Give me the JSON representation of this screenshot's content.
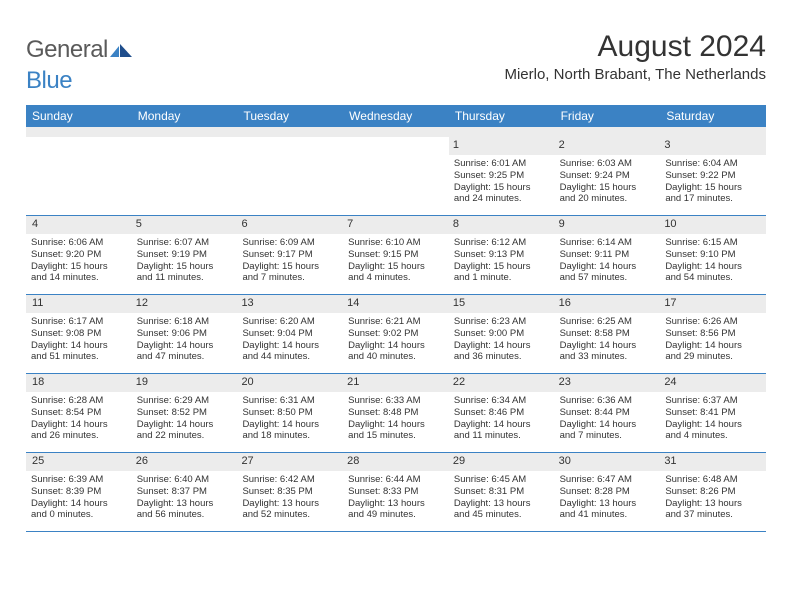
{
  "brand": {
    "part1": "General",
    "part2": "Blue"
  },
  "title": "August 2024",
  "location": "Mierlo, North Brabant, The Netherlands",
  "colors": {
    "accent": "#3b82c4",
    "band": "#ececec",
    "text": "#333333",
    "logo_gray": "#5a5a5a"
  },
  "dow": [
    "Sunday",
    "Monday",
    "Tuesday",
    "Wednesday",
    "Thursday",
    "Friday",
    "Saturday"
  ],
  "weeks": [
    [
      {
        "n": "",
        "sr": "",
        "ss": "",
        "d1": "",
        "d2": ""
      },
      {
        "n": "",
        "sr": "",
        "ss": "",
        "d1": "",
        "d2": ""
      },
      {
        "n": "",
        "sr": "",
        "ss": "",
        "d1": "",
        "d2": ""
      },
      {
        "n": "",
        "sr": "",
        "ss": "",
        "d1": "",
        "d2": ""
      },
      {
        "n": "1",
        "sr": "Sunrise: 6:01 AM",
        "ss": "Sunset: 9:25 PM",
        "d1": "Daylight: 15 hours",
        "d2": "and 24 minutes."
      },
      {
        "n": "2",
        "sr": "Sunrise: 6:03 AM",
        "ss": "Sunset: 9:24 PM",
        "d1": "Daylight: 15 hours",
        "d2": "and 20 minutes."
      },
      {
        "n": "3",
        "sr": "Sunrise: 6:04 AM",
        "ss": "Sunset: 9:22 PM",
        "d1": "Daylight: 15 hours",
        "d2": "and 17 minutes."
      }
    ],
    [
      {
        "n": "4",
        "sr": "Sunrise: 6:06 AM",
        "ss": "Sunset: 9:20 PM",
        "d1": "Daylight: 15 hours",
        "d2": "and 14 minutes."
      },
      {
        "n": "5",
        "sr": "Sunrise: 6:07 AM",
        "ss": "Sunset: 9:19 PM",
        "d1": "Daylight: 15 hours",
        "d2": "and 11 minutes."
      },
      {
        "n": "6",
        "sr": "Sunrise: 6:09 AM",
        "ss": "Sunset: 9:17 PM",
        "d1": "Daylight: 15 hours",
        "d2": "and 7 minutes."
      },
      {
        "n": "7",
        "sr": "Sunrise: 6:10 AM",
        "ss": "Sunset: 9:15 PM",
        "d1": "Daylight: 15 hours",
        "d2": "and 4 minutes."
      },
      {
        "n": "8",
        "sr": "Sunrise: 6:12 AM",
        "ss": "Sunset: 9:13 PM",
        "d1": "Daylight: 15 hours",
        "d2": "and 1 minute."
      },
      {
        "n": "9",
        "sr": "Sunrise: 6:14 AM",
        "ss": "Sunset: 9:11 PM",
        "d1": "Daylight: 14 hours",
        "d2": "and 57 minutes."
      },
      {
        "n": "10",
        "sr": "Sunrise: 6:15 AM",
        "ss": "Sunset: 9:10 PM",
        "d1": "Daylight: 14 hours",
        "d2": "and 54 minutes."
      }
    ],
    [
      {
        "n": "11",
        "sr": "Sunrise: 6:17 AM",
        "ss": "Sunset: 9:08 PM",
        "d1": "Daylight: 14 hours",
        "d2": "and 51 minutes."
      },
      {
        "n": "12",
        "sr": "Sunrise: 6:18 AM",
        "ss": "Sunset: 9:06 PM",
        "d1": "Daylight: 14 hours",
        "d2": "and 47 minutes."
      },
      {
        "n": "13",
        "sr": "Sunrise: 6:20 AM",
        "ss": "Sunset: 9:04 PM",
        "d1": "Daylight: 14 hours",
        "d2": "and 44 minutes."
      },
      {
        "n": "14",
        "sr": "Sunrise: 6:21 AM",
        "ss": "Sunset: 9:02 PM",
        "d1": "Daylight: 14 hours",
        "d2": "and 40 minutes."
      },
      {
        "n": "15",
        "sr": "Sunrise: 6:23 AM",
        "ss": "Sunset: 9:00 PM",
        "d1": "Daylight: 14 hours",
        "d2": "and 36 minutes."
      },
      {
        "n": "16",
        "sr": "Sunrise: 6:25 AM",
        "ss": "Sunset: 8:58 PM",
        "d1": "Daylight: 14 hours",
        "d2": "and 33 minutes."
      },
      {
        "n": "17",
        "sr": "Sunrise: 6:26 AM",
        "ss": "Sunset: 8:56 PM",
        "d1": "Daylight: 14 hours",
        "d2": "and 29 minutes."
      }
    ],
    [
      {
        "n": "18",
        "sr": "Sunrise: 6:28 AM",
        "ss": "Sunset: 8:54 PM",
        "d1": "Daylight: 14 hours",
        "d2": "and 26 minutes."
      },
      {
        "n": "19",
        "sr": "Sunrise: 6:29 AM",
        "ss": "Sunset: 8:52 PM",
        "d1": "Daylight: 14 hours",
        "d2": "and 22 minutes."
      },
      {
        "n": "20",
        "sr": "Sunrise: 6:31 AM",
        "ss": "Sunset: 8:50 PM",
        "d1": "Daylight: 14 hours",
        "d2": "and 18 minutes."
      },
      {
        "n": "21",
        "sr": "Sunrise: 6:33 AM",
        "ss": "Sunset: 8:48 PM",
        "d1": "Daylight: 14 hours",
        "d2": "and 15 minutes."
      },
      {
        "n": "22",
        "sr": "Sunrise: 6:34 AM",
        "ss": "Sunset: 8:46 PM",
        "d1": "Daylight: 14 hours",
        "d2": "and 11 minutes."
      },
      {
        "n": "23",
        "sr": "Sunrise: 6:36 AM",
        "ss": "Sunset: 8:44 PM",
        "d1": "Daylight: 14 hours",
        "d2": "and 7 minutes."
      },
      {
        "n": "24",
        "sr": "Sunrise: 6:37 AM",
        "ss": "Sunset: 8:41 PM",
        "d1": "Daylight: 14 hours",
        "d2": "and 4 minutes."
      }
    ],
    [
      {
        "n": "25",
        "sr": "Sunrise: 6:39 AM",
        "ss": "Sunset: 8:39 PM",
        "d1": "Daylight: 14 hours",
        "d2": "and 0 minutes."
      },
      {
        "n": "26",
        "sr": "Sunrise: 6:40 AM",
        "ss": "Sunset: 8:37 PM",
        "d1": "Daylight: 13 hours",
        "d2": "and 56 minutes."
      },
      {
        "n": "27",
        "sr": "Sunrise: 6:42 AM",
        "ss": "Sunset: 8:35 PM",
        "d1": "Daylight: 13 hours",
        "d2": "and 52 minutes."
      },
      {
        "n": "28",
        "sr": "Sunrise: 6:44 AM",
        "ss": "Sunset: 8:33 PM",
        "d1": "Daylight: 13 hours",
        "d2": "and 49 minutes."
      },
      {
        "n": "29",
        "sr": "Sunrise: 6:45 AM",
        "ss": "Sunset: 8:31 PM",
        "d1": "Daylight: 13 hours",
        "d2": "and 45 minutes."
      },
      {
        "n": "30",
        "sr": "Sunrise: 6:47 AM",
        "ss": "Sunset: 8:28 PM",
        "d1": "Daylight: 13 hours",
        "d2": "and 41 minutes."
      },
      {
        "n": "31",
        "sr": "Sunrise: 6:48 AM",
        "ss": "Sunset: 8:26 PM",
        "d1": "Daylight: 13 hours",
        "d2": "and 37 minutes."
      }
    ]
  ]
}
